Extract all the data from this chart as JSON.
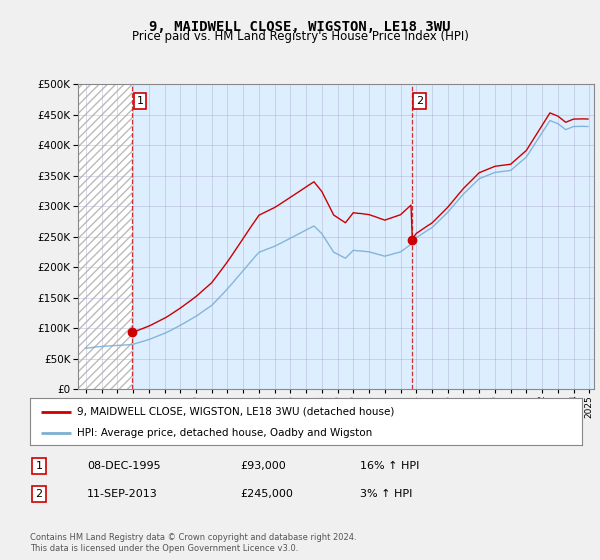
{
  "title": "9, MAIDWELL CLOSE, WIGSTON, LE18 3WU",
  "subtitle": "Price paid vs. HM Land Registry's House Price Index (HPI)",
  "title_fontsize": 10,
  "subtitle_fontsize": 8.5,
  "ylim": [
    0,
    500000
  ],
  "yticks": [
    0,
    50000,
    100000,
    150000,
    200000,
    250000,
    300000,
    350000,
    400000,
    450000,
    500000
  ],
  "xlim_start": 1992.5,
  "xlim_end": 2025.3,
  "hpi_color": "#7bafd4",
  "price_color": "#cc0000",
  "bg_hatch_color": "#d8d8d8",
  "plot_bg_after": "#ddeeff",
  "transaction1_x": 1995.93,
  "transaction1_y": 93000,
  "transaction2_x": 2013.7,
  "transaction2_y": 245000,
  "legend_label1": "9, MAIDWELL CLOSE, WIGSTON, LE18 3WU (detached house)",
  "legend_label2": "HPI: Average price, detached house, Oadby and Wigston",
  "footer1": "Contains HM Land Registry data © Crown copyright and database right 2024.",
  "footer2": "This data is licensed under the Open Government Licence v3.0.",
  "table_rows": [
    {
      "num": "1",
      "date": "08-DEC-1995",
      "price": "£93,000",
      "hpi": "16% ↑ HPI"
    },
    {
      "num": "2",
      "date": "11-SEP-2013",
      "price": "£245,000",
      "hpi": "3% ↑ HPI"
    }
  ]
}
